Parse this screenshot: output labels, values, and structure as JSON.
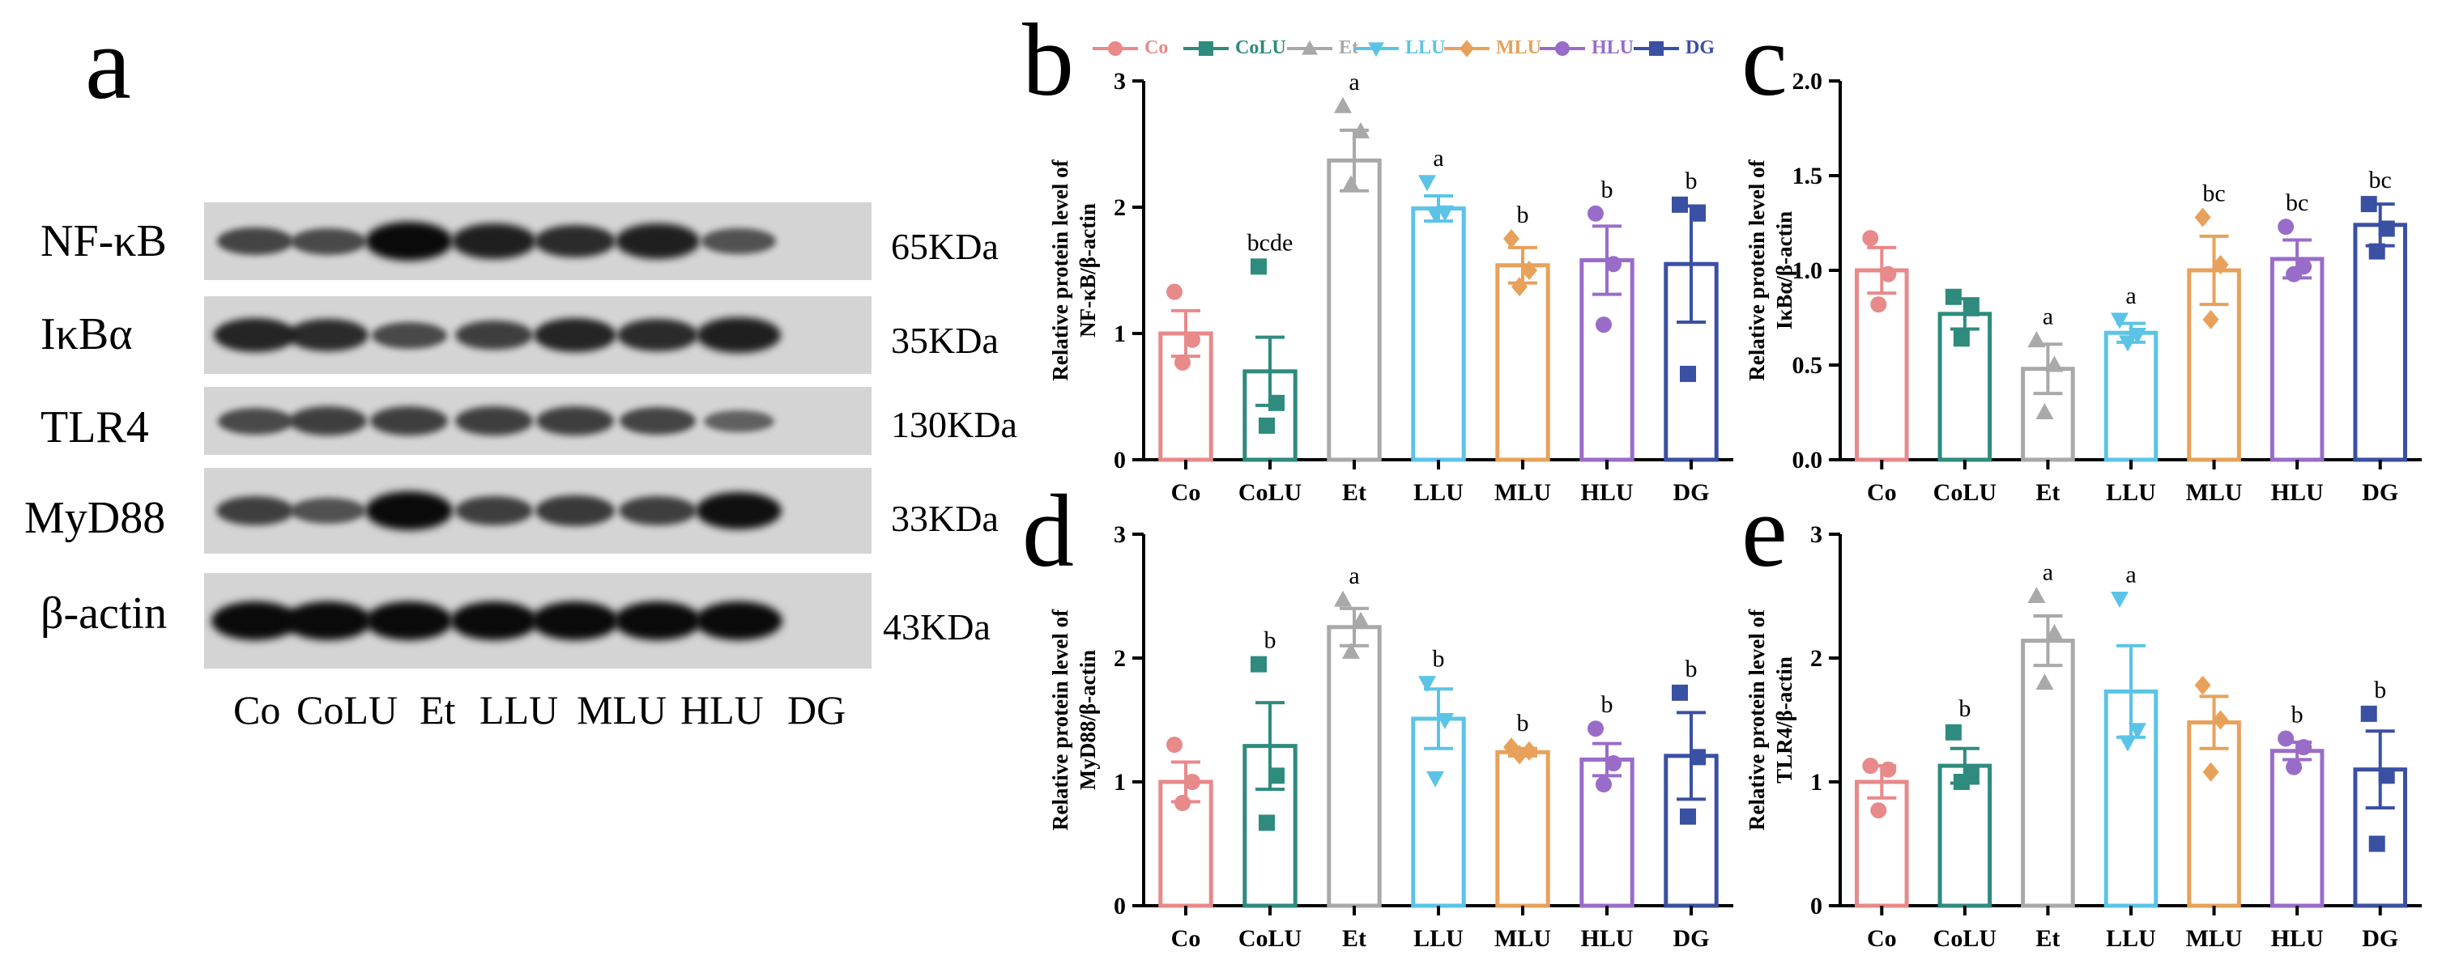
{
  "panel_a": {
    "letter": "a",
    "proteins": [
      {
        "name": "NF-κB",
        "kda": "65KDa",
        "intensity": [
          0.55,
          0.5,
          1.0,
          0.85,
          0.75,
          0.85,
          0.45
        ]
      },
      {
        "name": "IκBα",
        "kda": "35KDa",
        "intensity": [
          0.8,
          0.75,
          0.5,
          0.6,
          0.8,
          0.75,
          0.85
        ]
      },
      {
        "name": "TLR4",
        "kda": "130KDa",
        "intensity": [
          0.5,
          0.6,
          0.6,
          0.6,
          0.6,
          0.55,
          0.3
        ]
      },
      {
        "name": "MyD88",
        "kda": "33KDa",
        "intensity": [
          0.6,
          0.45,
          1.0,
          0.6,
          0.65,
          0.6,
          0.95
        ]
      },
      {
        "name": "β-actin",
        "kda": "43KDa",
        "intensity": [
          1.0,
          1.0,
          1.0,
          1.0,
          1.0,
          1.0,
          1.0
        ]
      }
    ],
    "lanes": [
      "Co",
      "CoLU",
      "Et",
      "LLU",
      "MLU",
      "HLU",
      "DG"
    ]
  },
  "legend": [
    {
      "label": "Co",
      "color": "#E8898A",
      "marker": "circle"
    },
    {
      "label": "CoLU",
      "color": "#2E8B7E",
      "marker": "square"
    },
    {
      "label": "Et",
      "color": "#A9A9A9",
      "marker": "triangle-up"
    },
    {
      "label": "LLU",
      "color": "#5BC4E6",
      "marker": "triangle-down"
    },
    {
      "label": "MLU",
      "color": "#E8A15A",
      "marker": "diamond"
    },
    {
      "label": "HLU",
      "color": "#9A6CC9",
      "marker": "circle"
    },
    {
      "label": "DG",
      "color": "#3A50A3",
      "marker": "square"
    }
  ],
  "chart_data": [
    {
      "id": "b",
      "letter": "b",
      "type": "bar",
      "categories": [
        "Co",
        "CoLU",
        "Et",
        "LLU",
        "MLU",
        "HLU",
        "DG"
      ],
      "values": [
        1.0,
        0.7,
        2.37,
        1.99,
        1.54,
        1.58,
        1.55
      ],
      "errors": [
        0.18,
        0.27,
        0.24,
        0.1,
        0.14,
        0.27,
        0.46
      ],
      "points": [
        [
          1.33,
          0.95,
          0.77
        ],
        [
          1.53,
          0.45,
          0.27
        ],
        [
          2.8,
          2.6,
          2.18
        ],
        [
          2.2,
          1.96,
          1.95
        ],
        [
          1.75,
          1.5,
          1.37
        ],
        [
          1.95,
          1.55,
          1.07
        ],
        [
          2.02,
          1.95,
          0.68
        ]
      ],
      "sig": [
        "",
        "bcde",
        "a",
        "a",
        "b",
        "b",
        "b"
      ],
      "ylabel": "Relative protein level of NF-κB/β-actin",
      "ylabel_lines": [
        "Relative protein level of",
        "NF-κB/β-actin"
      ],
      "ylim": [
        0,
        3
      ],
      "yticks": [
        "0",
        "1",
        "2",
        "3"
      ],
      "ytick_values": [
        0,
        1,
        2,
        3
      ]
    },
    {
      "id": "c",
      "letter": "c",
      "type": "bar",
      "categories": [
        "Co",
        "CoLU",
        "Et",
        "LLU",
        "MLU",
        "HLU",
        "DG"
      ],
      "values": [
        1.0,
        0.77,
        0.48,
        0.67,
        1.0,
        1.06,
        1.24
      ],
      "errors": [
        0.12,
        0.08,
        0.13,
        0.05,
        0.18,
        0.1,
        0.11
      ],
      "points": [
        [
          1.17,
          0.98,
          0.82
        ],
        [
          0.86,
          0.8,
          0.64
        ],
        [
          0.63,
          0.5,
          0.25
        ],
        [
          0.74,
          0.66,
          0.62
        ],
        [
          1.28,
          1.03,
          0.74
        ],
        [
          1.23,
          1.02,
          0.98
        ],
        [
          1.35,
          1.22,
          1.1
        ]
      ],
      "sig": [
        "",
        "",
        "a",
        "a",
        "bc",
        "bc",
        "bc"
      ],
      "ylabel": "Relative protein level of IκBα/β-actin",
      "ylabel_lines": [
        "Relative protein level of",
        "IκBα/β-actin"
      ],
      "ylim": [
        0,
        2
      ],
      "yticks": [
        "0.0",
        "0.5",
        "1.0",
        "1.5",
        "2.0"
      ],
      "ytick_values": [
        0,
        0.5,
        1,
        1.5,
        2
      ]
    },
    {
      "id": "d",
      "letter": "d",
      "type": "bar",
      "categories": [
        "Co",
        "CoLU",
        "Et",
        "LLU",
        "MLU",
        "HLU",
        "DG"
      ],
      "values": [
        1.0,
        1.29,
        2.25,
        1.51,
        1.24,
        1.18,
        1.21
      ],
      "errors": [
        0.16,
        0.35,
        0.15,
        0.24,
        0.03,
        0.13,
        0.35
      ],
      "points": [
        [
          1.3,
          1.0,
          0.83
        ],
        [
          1.95,
          1.05,
          0.67
        ],
        [
          2.47,
          2.3,
          2.05
        ],
        [
          1.8,
          1.5,
          1.03
        ],
        [
          1.28,
          1.25,
          1.22
        ],
        [
          1.43,
          1.15,
          0.98
        ],
        [
          1.72,
          1.2,
          0.72
        ]
      ],
      "sig": [
        "",
        "b",
        "a",
        "b",
        "b",
        "b",
        "b"
      ],
      "ylabel": "Relative protein level of MyD88/β-actin",
      "ylabel_lines": [
        "Relative protein level of",
        "MyD88/β-actin"
      ],
      "ylim": [
        0,
        3
      ],
      "yticks": [
        "0",
        "1",
        "2",
        "3"
      ],
      "ytick_values": [
        0,
        1,
        2,
        3
      ]
    },
    {
      "id": "e",
      "letter": "e",
      "type": "bar",
      "categories": [
        "Co",
        "CoLU",
        "Et",
        "LLU",
        "MLU",
        "HLU",
        "DG"
      ],
      "values": [
        1.0,
        1.13,
        2.14,
        1.73,
        1.48,
        1.25,
        1.1
      ],
      "errors": [
        0.13,
        0.14,
        0.2,
        0.37,
        0.21,
        0.07,
        0.31
      ],
      "points": [
        [
          1.13,
          1.1,
          0.77
        ],
        [
          1.4,
          1.05,
          1.0
        ],
        [
          2.5,
          2.2,
          1.8
        ],
        [
          2.48,
          1.42,
          1.32
        ],
        [
          1.78,
          1.5,
          1.08
        ],
        [
          1.35,
          1.28,
          1.12
        ],
        [
          1.55,
          1.05,
          0.5
        ]
      ],
      "sig": [
        "",
        "b",
        "a",
        "a",
        "",
        "b",
        "b"
      ],
      "ylabel": "Relative protein level of TLR4/β-actin",
      "ylabel_lines": [
        "Relative protein level of",
        "TLR4/β-actin"
      ],
      "ylim": [
        0,
        3
      ],
      "yticks": [
        "0",
        "1",
        "2",
        "3"
      ],
      "ytick_values": [
        0,
        1,
        2,
        3
      ]
    }
  ]
}
